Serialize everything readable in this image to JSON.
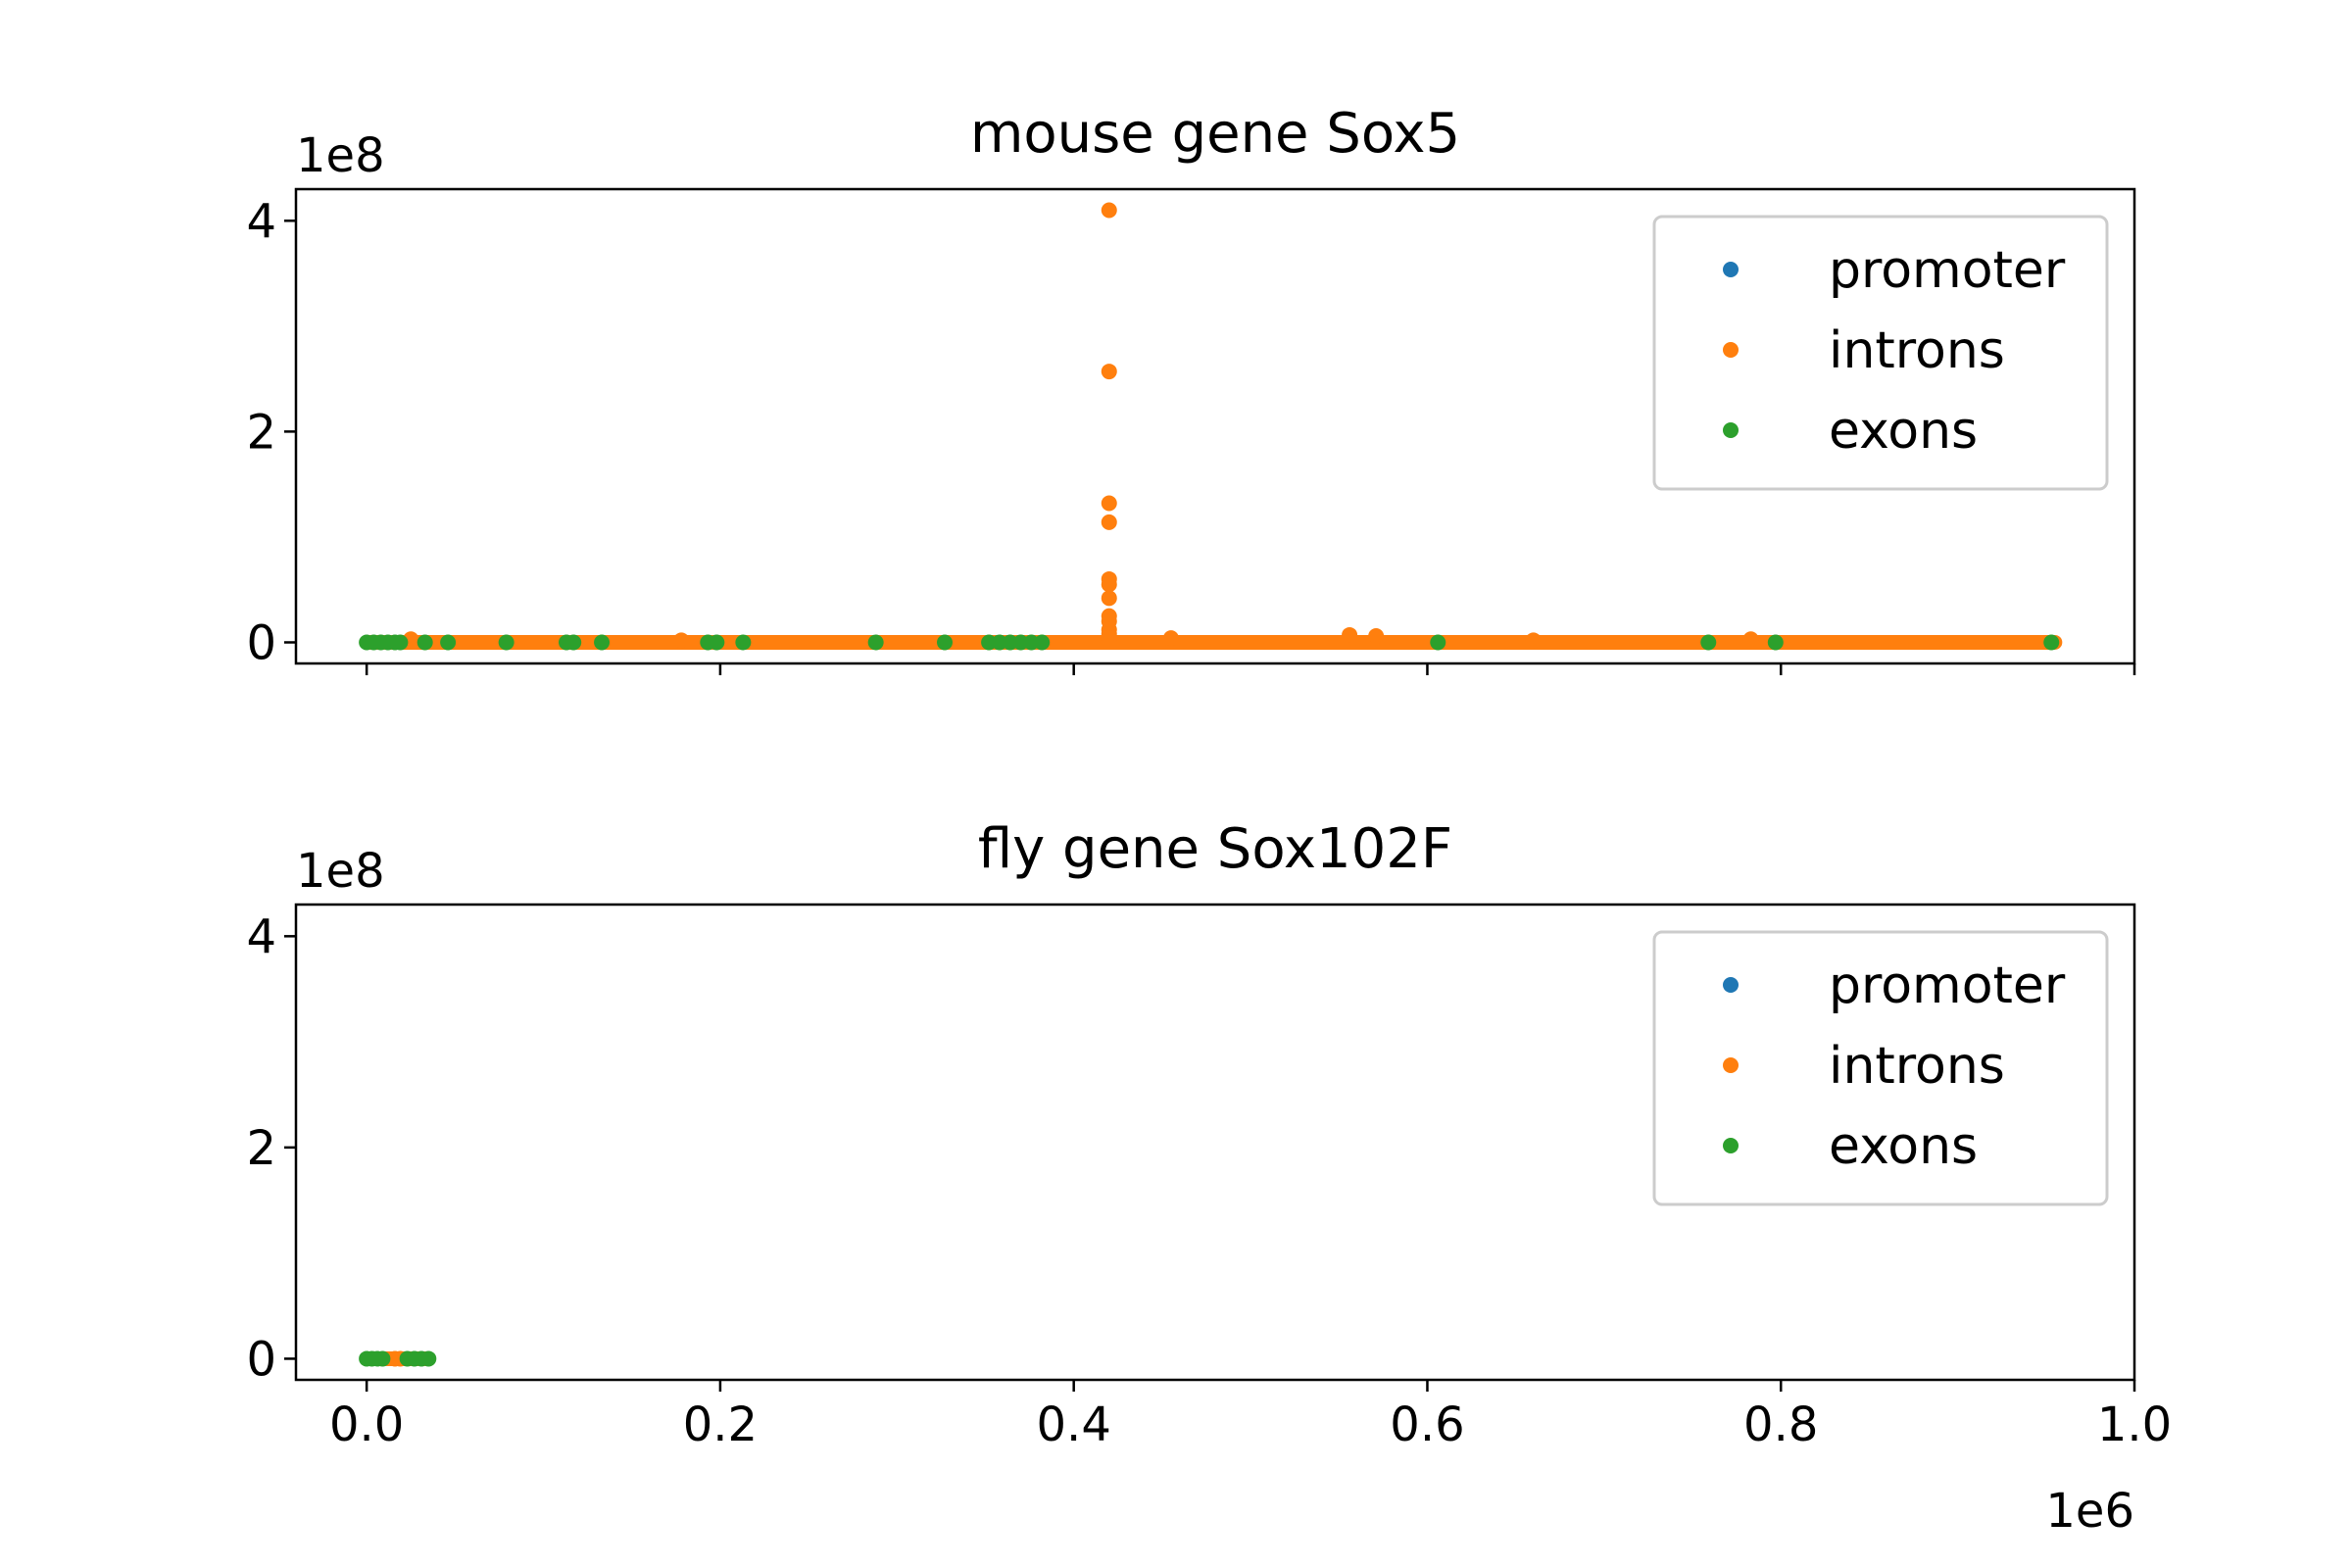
{
  "chart_data": [
    {
      "type": "scatter",
      "title": "mouse gene Sox5",
      "xlabel": "",
      "ylabel": "",
      "x_offset_label": "",
      "y_offset_label": "1e8",
      "xlim": [
        -40000,
        1000000
      ],
      "ylim": [
        -20000000,
        430000000
      ],
      "x_ticks": [
        0,
        200000,
        400000,
        600000,
        800000,
        1000000
      ],
      "x_tick_labels": [
        "",
        "",
        "",
        "",
        "",
        ""
      ],
      "y_ticks": [
        0,
        200000000,
        400000000
      ],
      "y_tick_labels": [
        "0",
        "2",
        "4"
      ],
      "legend": {
        "position": "top-right",
        "entries": [
          "promoter",
          "introns",
          "exons"
        ]
      },
      "series": [
        {
          "name": "promoter",
          "color": "#1f77b4",
          "points": []
        },
        {
          "name": "introns",
          "color": "#ff7f0e",
          "line_segments": [
            [
              0,
              955000,
              0
            ]
          ],
          "points": [
            [
              25000,
              3000000
            ],
            [
              178000,
              2000000
            ],
            [
              420000,
              410000000
            ],
            [
              420000,
              257000000
            ],
            [
              420000,
              132000000
            ],
            [
              420000,
              114000000
            ],
            [
              420000,
              60000000
            ],
            [
              420000,
              55000000
            ],
            [
              420000,
              42000000
            ],
            [
              420000,
              25000000
            ],
            [
              420000,
              20000000
            ],
            [
              420000,
              12000000
            ],
            [
              420000,
              8000000
            ],
            [
              420000,
              4000000
            ],
            [
              455000,
              4000000
            ],
            [
              556000,
              7000000
            ],
            [
              571000,
              6000000
            ],
            [
              660000,
              2000000
            ],
            [
              783000,
              3000000
            ]
          ]
        },
        {
          "name": "exons",
          "color": "#2ca02c",
          "points": [
            [
              0,
              0
            ],
            [
              4000,
              0
            ],
            [
              8000,
              0
            ],
            [
              12000,
              0
            ],
            [
              16000,
              0
            ],
            [
              19000,
              0
            ],
            [
              33000,
              0
            ],
            [
              46000,
              0
            ],
            [
              79000,
              0
            ],
            [
              113000,
              0
            ],
            [
              117000,
              0
            ],
            [
              133000,
              0
            ],
            [
              193000,
              0
            ],
            [
              198000,
              0
            ],
            [
              213000,
              0
            ],
            [
              288000,
              0
            ],
            [
              327000,
              0
            ],
            [
              352000,
              0
            ],
            [
              358000,
              0
            ],
            [
              364000,
              0
            ],
            [
              370000,
              0
            ],
            [
              376000,
              0
            ],
            [
              382000,
              0
            ],
            [
              606000,
              0
            ],
            [
              759000,
              0
            ],
            [
              797000,
              0
            ],
            [
              953000,
              0
            ]
          ]
        }
      ]
    },
    {
      "type": "scatter",
      "title": "fly gene Sox102F",
      "xlabel": "",
      "ylabel": "",
      "x_offset_label": "1e6",
      "y_offset_label": "1e8",
      "xlim": [
        -40000,
        1000000
      ],
      "ylim": [
        -20000000,
        430000000
      ],
      "x_ticks": [
        0,
        200000,
        400000,
        600000,
        800000,
        1000000
      ],
      "x_tick_labels": [
        "0.0",
        "0.2",
        "0.4",
        "0.6",
        "0.8",
        "1.0"
      ],
      "y_ticks": [
        0,
        200000000,
        400000000
      ],
      "y_tick_labels": [
        "0",
        "2",
        "4"
      ],
      "legend": {
        "position": "top-right",
        "entries": [
          "promoter",
          "introns",
          "exons"
        ]
      },
      "series": [
        {
          "name": "promoter",
          "color": "#1f77b4",
          "points": []
        },
        {
          "name": "introns",
          "color": "#ff7f0e",
          "line_segments": [
            [
              0,
              35000,
              0
            ]
          ],
          "points": [
            [
              16000,
              0
            ],
            [
              19000,
              0
            ]
          ]
        },
        {
          "name": "exons",
          "color": "#2ca02c",
          "points": [
            [
              0,
              0
            ],
            [
              3000,
              0
            ],
            [
              6000,
              0
            ],
            [
              9000,
              0
            ],
            [
              23000,
              0
            ],
            [
              27000,
              0
            ],
            [
              31000,
              0
            ],
            [
              35000,
              0
            ]
          ]
        }
      ]
    }
  ]
}
